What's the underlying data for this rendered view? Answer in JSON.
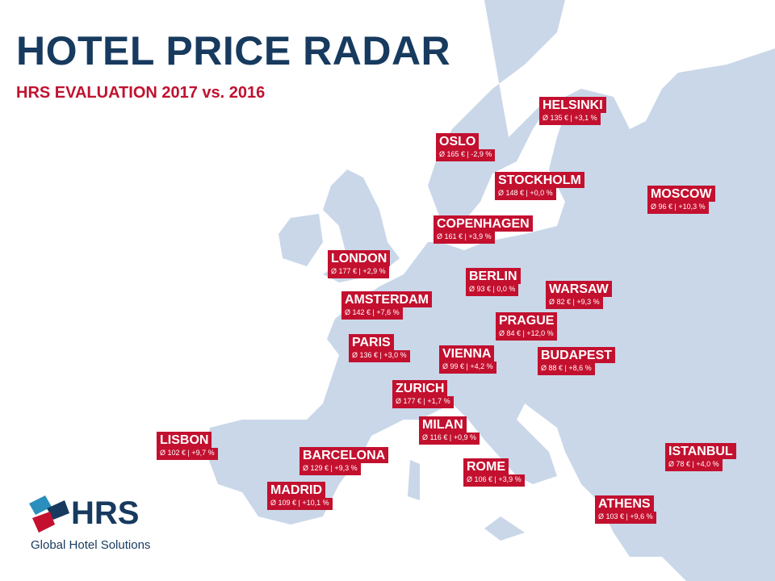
{
  "header": {
    "title": "HOTEL PRICE RADAR",
    "subtitle": "HRS EVALUATION 2017 vs. 2016"
  },
  "cities": [
    {
      "name": "HELSINKI",
      "stats": "Ø 135 € | +3,1 %"
    },
    {
      "name": "OSLO",
      "stats": "Ø 165 € | -2,9 %"
    },
    {
      "name": "STOCKHOLM",
      "stats": "Ø 148 € | +0,0 %"
    },
    {
      "name": "MOSCOW",
      "stats": "Ø 96 € | +10,3 %"
    },
    {
      "name": "COPENHAGEN",
      "stats": "Ø 161 € | +3,9 %"
    },
    {
      "name": "LONDON",
      "stats": "Ø 177 € | +2,9 %"
    },
    {
      "name": "BERLIN",
      "stats": "Ø 93 € | 0,0 %"
    },
    {
      "name": "WARSAW",
      "stats": "Ø 82 € | +9,3 %"
    },
    {
      "name": "AMSTERDAM",
      "stats": "Ø 142 € | +7,6 %"
    },
    {
      "name": "PRAGUE",
      "stats": "Ø 84 € | +12,0 %"
    },
    {
      "name": "PARIS",
      "stats": "Ø 136 € | +3,0 %"
    },
    {
      "name": "VIENNA",
      "stats": "Ø 99 € | +4,2 %"
    },
    {
      "name": "BUDAPEST",
      "stats": "Ø 88 € | +8,6 %"
    },
    {
      "name": "ZURICH",
      "stats": "Ø 177 € | +1,7 %"
    },
    {
      "name": "MILAN",
      "stats": "Ø 116 € | +0,9 %"
    },
    {
      "name": "LISBON",
      "stats": "Ø 102 € | +9,7 %"
    },
    {
      "name": "ISTANBUL",
      "stats": "Ø 78 € | +4,0 %"
    },
    {
      "name": "BARCELONA",
      "stats": "Ø 129 € | +9,3 %"
    },
    {
      "name": "ROME",
      "stats": "Ø 106 € | +3,9 %"
    },
    {
      "name": "MADRID",
      "stats": "Ø 109 € | +10,1 %"
    },
    {
      "name": "ATHENS",
      "stats": "Ø 103 € | +9,6 %"
    }
  ],
  "logo": {
    "brand": "HRS",
    "tagline": "Global Hotel Solutions"
  }
}
